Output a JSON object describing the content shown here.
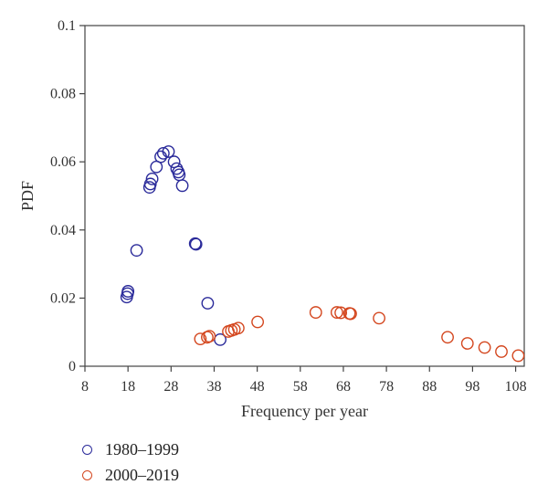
{
  "chart_data": {
    "type": "scatter",
    "title": "",
    "xlabel": "Frequency per year",
    "ylabel": "PDF",
    "xlim": [
      8,
      110
    ],
    "ylim": [
      0,
      0.1
    ],
    "x_ticks": [
      8,
      18,
      28,
      38,
      48,
      58,
      68,
      78,
      88,
      98,
      108
    ],
    "x_tick_labels": [
      "8",
      "18",
      "28",
      "38",
      "48",
      "58",
      "68",
      "78",
      "88",
      "98",
      "108"
    ],
    "y_ticks": [
      0,
      0.02,
      0.04,
      0.06,
      0.08,
      0.1
    ],
    "y_tick_labels": [
      "0",
      "0.02",
      "0.04",
      "0.06",
      "0.08",
      "0.1"
    ],
    "grid": false,
    "legend_position": "bottom-left",
    "series": [
      {
        "name": "1980–1999",
        "color": "#2a2a9a",
        "points": [
          {
            "x": 17.7,
            "y": 0.0203
          },
          {
            "x": 17.9,
            "y": 0.0213
          },
          {
            "x": 18.0,
            "y": 0.022
          },
          {
            "x": 20.0,
            "y": 0.034
          },
          {
            "x": 23.0,
            "y": 0.0525
          },
          {
            "x": 23.2,
            "y": 0.0535
          },
          {
            "x": 23.6,
            "y": 0.055
          },
          {
            "x": 24.6,
            "y": 0.0585
          },
          {
            "x": 25.6,
            "y": 0.0615
          },
          {
            "x": 26.2,
            "y": 0.0625
          },
          {
            "x": 27.4,
            "y": 0.063
          },
          {
            "x": 28.7,
            "y": 0.06
          },
          {
            "x": 29.3,
            "y": 0.058
          },
          {
            "x": 29.7,
            "y": 0.057
          },
          {
            "x": 29.9,
            "y": 0.0562
          },
          {
            "x": 30.6,
            "y": 0.053
          },
          {
            "x": 33.6,
            "y": 0.036
          },
          {
            "x": 33.8,
            "y": 0.0358
          },
          {
            "x": 36.5,
            "y": 0.0185
          },
          {
            "x": 39.4,
            "y": 0.0078
          }
        ]
      },
      {
        "name": "2000–2019",
        "color": "#d4471f",
        "points": [
          {
            "x": 34.8,
            "y": 0.008
          },
          {
            "x": 36.4,
            "y": 0.0085
          },
          {
            "x": 36.9,
            "y": 0.0088
          },
          {
            "x": 41.3,
            "y": 0.0102
          },
          {
            "x": 42.0,
            "y": 0.0105
          },
          {
            "x": 42.7,
            "y": 0.0108
          },
          {
            "x": 43.6,
            "y": 0.0112
          },
          {
            "x": 48.1,
            "y": 0.013
          },
          {
            "x": 61.6,
            "y": 0.0158
          },
          {
            "x": 66.5,
            "y": 0.0158
          },
          {
            "x": 67.4,
            "y": 0.0157
          },
          {
            "x": 69.4,
            "y": 0.0155
          },
          {
            "x": 69.7,
            "y": 0.0154
          },
          {
            "x": 76.3,
            "y": 0.0141
          },
          {
            "x": 92.2,
            "y": 0.0085
          },
          {
            "x": 96.8,
            "y": 0.0067
          },
          {
            "x": 100.8,
            "y": 0.0055
          },
          {
            "x": 104.7,
            "y": 0.0043
          },
          {
            "x": 108.6,
            "y": 0.0031
          }
        ]
      }
    ]
  }
}
